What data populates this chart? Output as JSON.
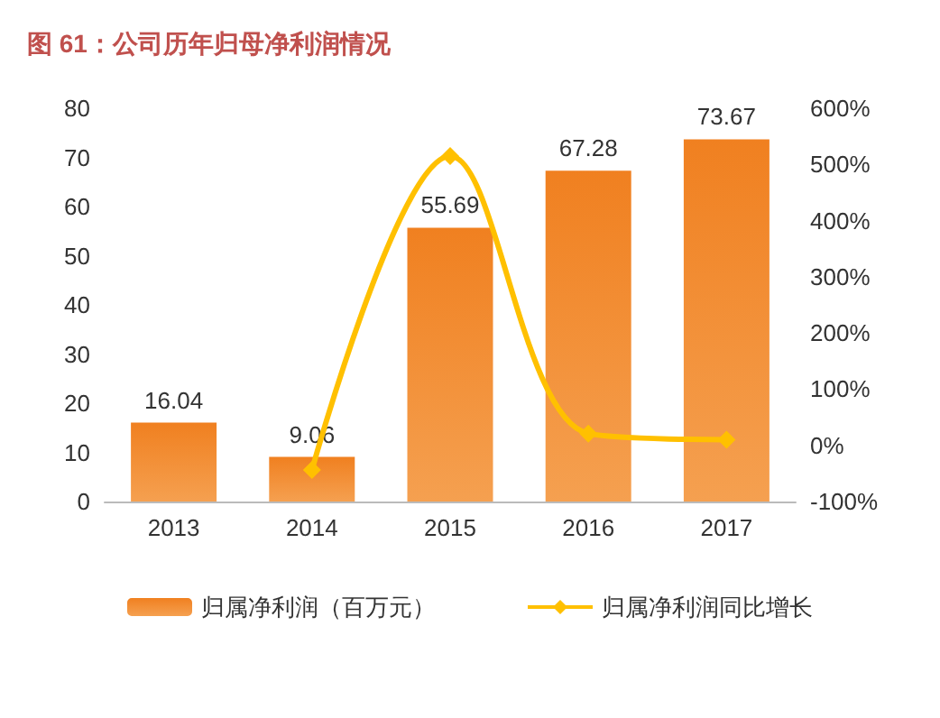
{
  "chart_data": {
    "type": "bar",
    "title": "图 61：公司历年归母净利润情况",
    "categories": [
      "2013",
      "2014",
      "2015",
      "2016",
      "2017"
    ],
    "series": [
      {
        "name": "归属净利润（百万元）",
        "color": "#f08020",
        "values": [
          16.04,
          9.06,
          55.69,
          67.28,
          73.67
        ],
        "value_labels": [
          "16.04",
          "9.06",
          "55.69",
          "67.28",
          "73.67"
        ]
      },
      {
        "name": "归属净利润同比增长",
        "type": "line",
        "axis": "y2",
        "color": "#ffc000",
        "marker": "diamond",
        "values": [
          null,
          -44,
          515,
          21,
          10
        ]
      }
    ],
    "ylim": [
      0,
      80
    ],
    "yticks": [
      0,
      10,
      20,
      30,
      40,
      50,
      60,
      70,
      80
    ],
    "y2lim": [
      -100,
      600
    ],
    "y2ticks": [
      {
        "value": -100,
        "label": "-100%"
      },
      {
        "value": 0,
        "label": "0%"
      },
      {
        "value": 100,
        "label": "100%"
      },
      {
        "value": 200,
        "label": "200%"
      },
      {
        "value": 300,
        "label": "300%"
      },
      {
        "value": 400,
        "label": "400%"
      },
      {
        "value": 500,
        "label": "500%"
      },
      {
        "value": 600,
        "label": "600%"
      }
    ],
    "grid": false,
    "legend": "bottom"
  }
}
